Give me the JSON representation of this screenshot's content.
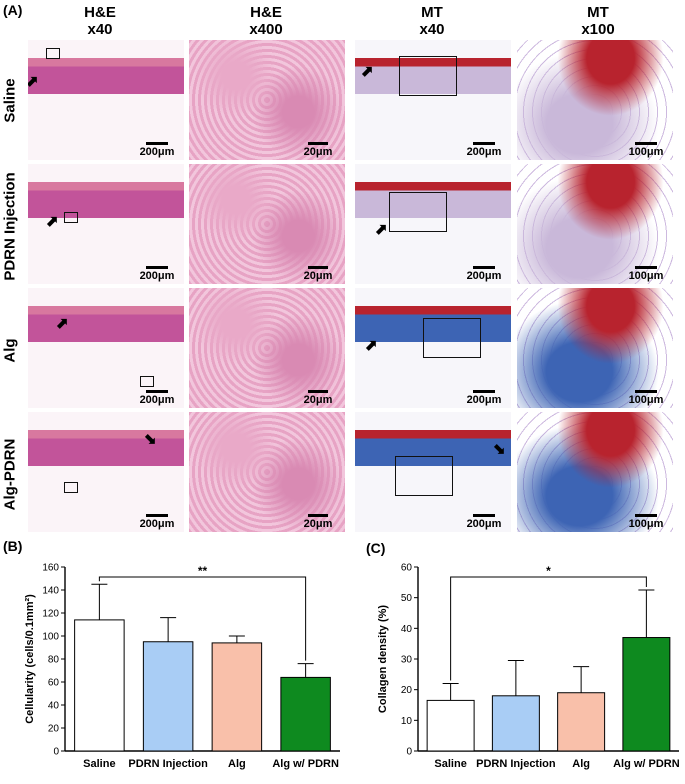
{
  "panel_labels": {
    "a": "(A)",
    "b": "(B)",
    "c": "(C)"
  },
  "histology": {
    "columns": [
      {
        "stain": "H&E",
        "mag": "x40"
      },
      {
        "stain": "H&E",
        "mag": "x400"
      },
      {
        "stain": "MT",
        "mag": "x40"
      },
      {
        "stain": "MT",
        "mag": "x100"
      }
    ],
    "rows": [
      "Saline",
      "PDRN Injection",
      "Alg",
      "Alg-PDRN"
    ],
    "scale_bars": [
      "200μm",
      "20μm",
      "200μm",
      "100μm"
    ],
    "colors": {
      "he_pink": "#e9a9c8",
      "he_dark": "#c2549a",
      "mt_blue": "#3d64b4",
      "mt_red": "#b8232e",
      "tissue_bg": "#f4eef2"
    }
  },
  "chart_data": [
    {
      "type": "bar",
      "categories": [
        "Saline",
        "PDRN Injection",
        "Alg",
        "Alg w/ PDRN"
      ],
      "values": [
        114,
        95,
        94,
        64
      ],
      "errors": [
        31,
        21,
        6,
        12
      ],
      "colors": [
        "#ffffff",
        "#a9cdf5",
        "#f9c0aa",
        "#0e8a1f"
      ],
      "ylabel": "Cellularity (cells/0.1mm²)",
      "ylim": [
        0,
        160
      ],
      "yticks": [
        0,
        20,
        40,
        60,
        80,
        100,
        120,
        140,
        160
      ],
      "significance": {
        "label": "**",
        "from": "Saline",
        "to": "Alg w/ PDRN"
      },
      "grid": false
    },
    {
      "type": "bar",
      "categories": [
        "Saline",
        "PDRN Injection",
        "Alg",
        "Alg w/ PDRN"
      ],
      "values": [
        16.5,
        18,
        19,
        37
      ],
      "errors": [
        5.5,
        11.5,
        8.5,
        15.5
      ],
      "colors": [
        "#ffffff",
        "#a9cdf5",
        "#f9c0aa",
        "#0e8a1f"
      ],
      "ylabel": "Collagen density (%)",
      "ylim": [
        0,
        60
      ],
      "yticks": [
        0,
        10,
        20,
        30,
        40,
        50,
        60
      ],
      "significance": {
        "label": "*",
        "from": "Saline",
        "to": "Alg w/ PDRN"
      },
      "grid": false
    }
  ]
}
